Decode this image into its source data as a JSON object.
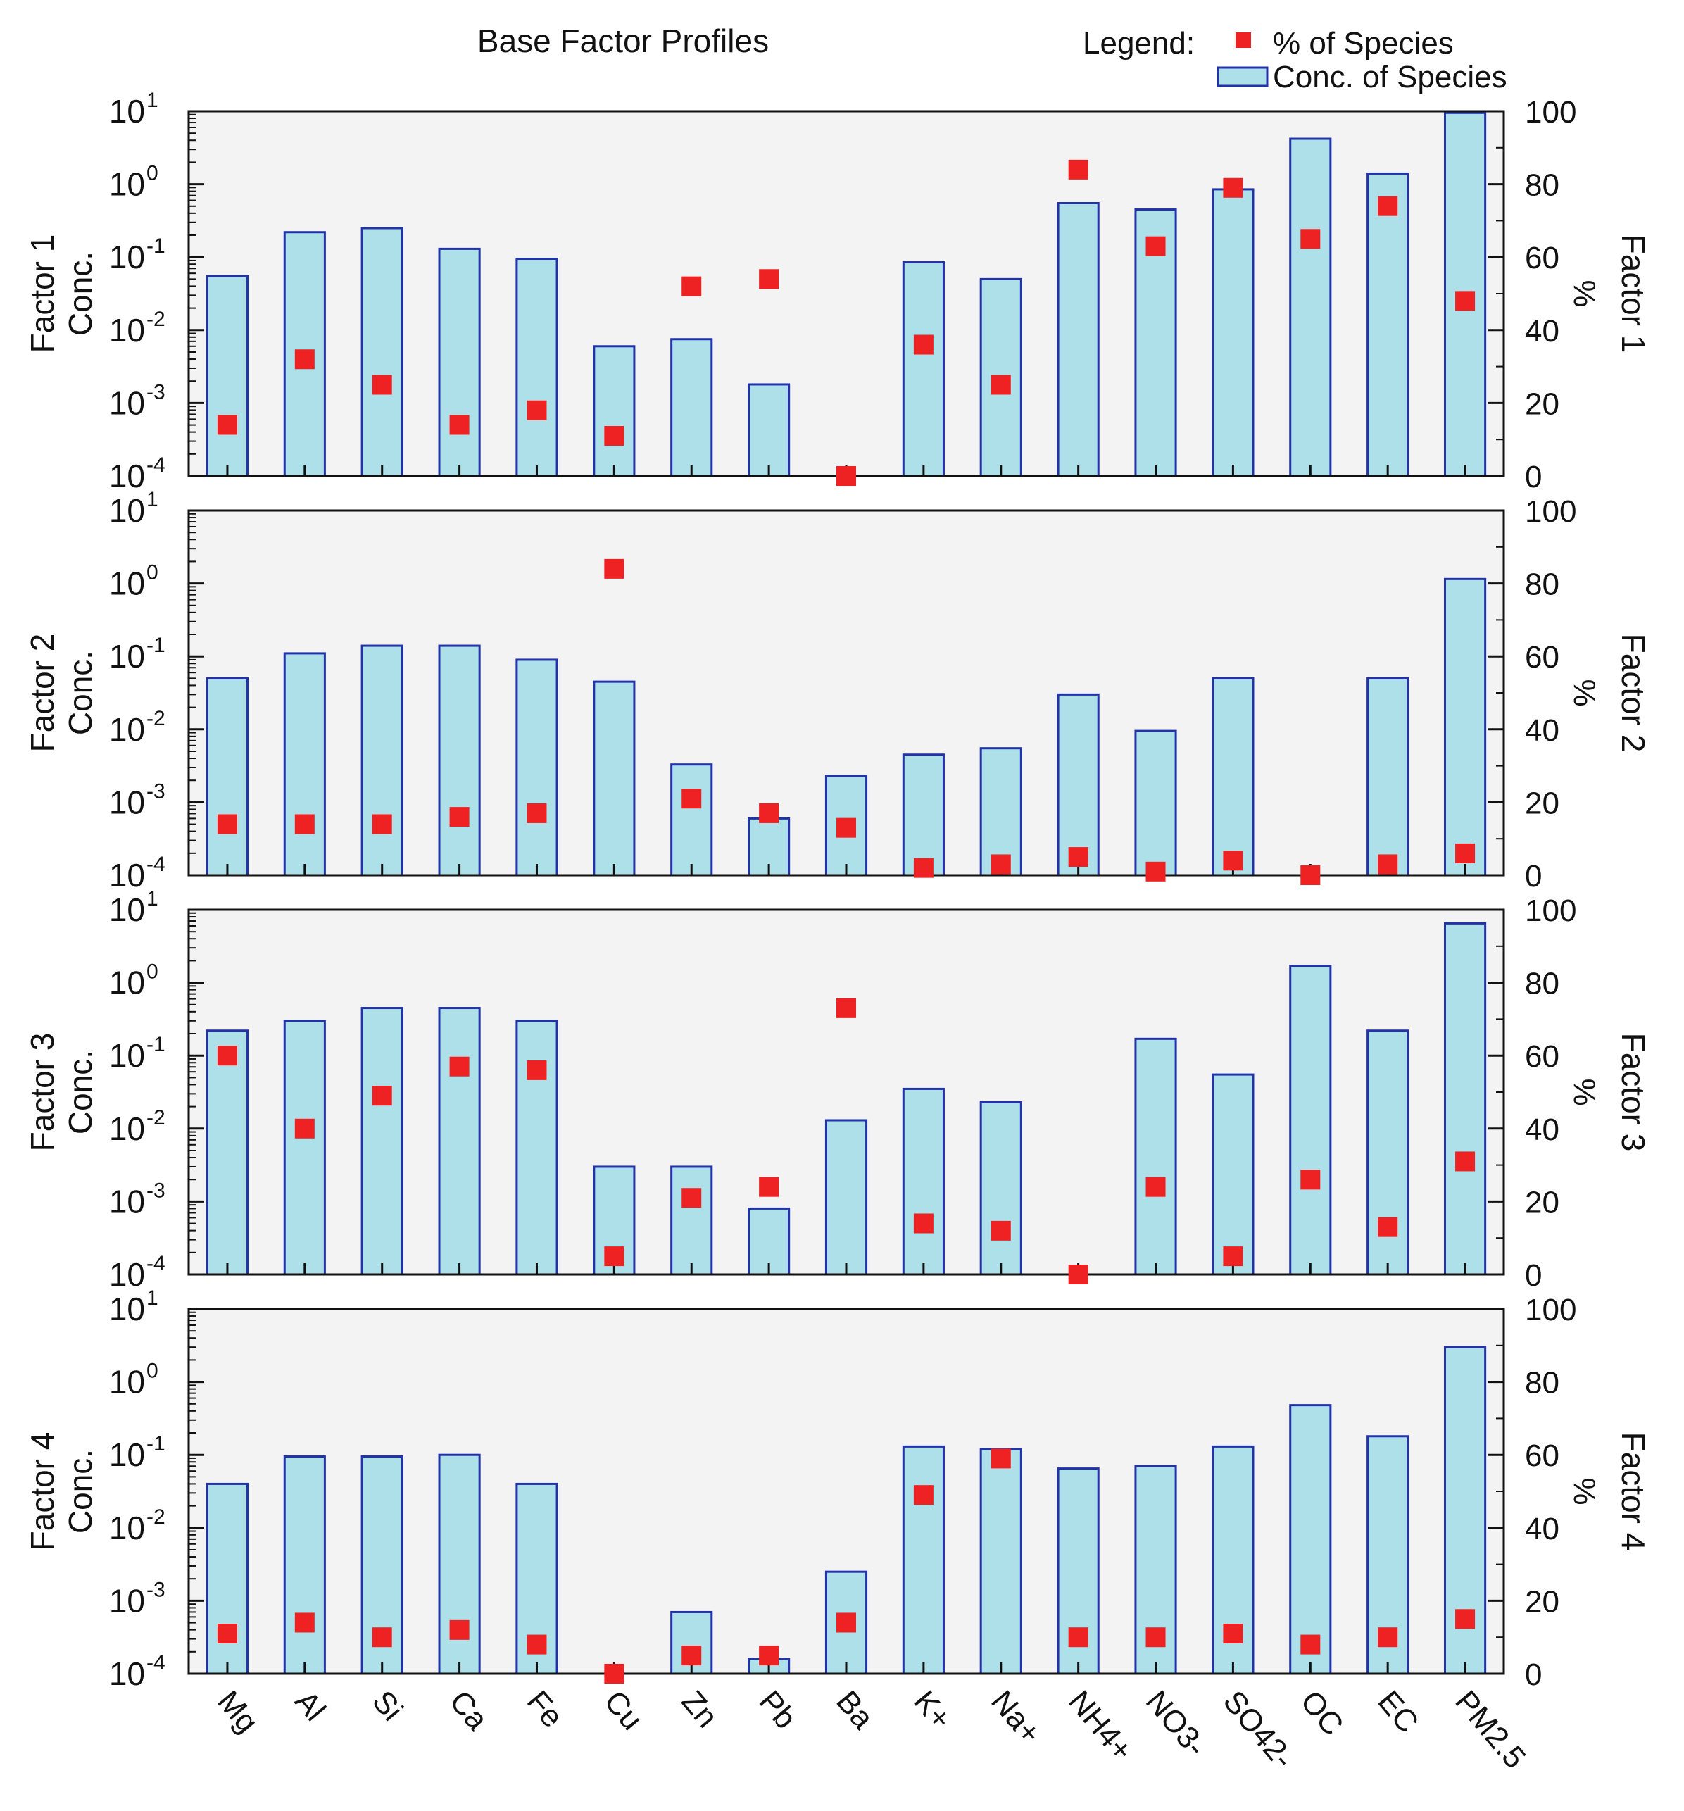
{
  "chart_data": {
    "type": "bar",
    "title": "Base Factor Profiles",
    "legend": {
      "label": "Legend:",
      "items": [
        {
          "name": "% of Species",
          "marker": "square",
          "color": "#ee2222"
        },
        {
          "name": "Conc. of Species",
          "marker": "bar",
          "color": "#aee0ea"
        }
      ],
      "placement": "top-right"
    },
    "categories": [
      "Mg",
      "Al",
      "Si",
      "Ca",
      "Fe",
      "Cu",
      "Zn",
      "Pb",
      "Ba",
      "K+",
      "Na+",
      "NH4+",
      "NO3-",
      "SO42-",
      "OC",
      "EC",
      "PM2.5"
    ],
    "left_axis": {
      "scale": "log",
      "ylim": [
        0.0001,
        10
      ],
      "ticks": [
        "-4",
        "-3",
        "-2",
        "-1",
        "0",
        "1"
      ],
      "tick_base": "10"
    },
    "right_axis": {
      "scale": "linear",
      "ylim": [
        0,
        100
      ],
      "ticks": [
        "0",
        "20",
        "40",
        "60",
        "80",
        "100"
      ],
      "label": "%"
    },
    "colors": {
      "bar_fill": "#aee0ea",
      "bar_edge": "#2233aa",
      "marker": "#ee2222",
      "panel_bg": "#f3f3f3"
    },
    "panels": [
      {
        "name": "Factor 1",
        "ylabel_line1": "Factor 1",
        "ylabel_line2": "Conc.",
        "right_label": "Factor 1",
        "conc": [
          0.055,
          0.22,
          0.25,
          0.13,
          0.095,
          0.006,
          0.0075,
          0.0018,
          0.0001,
          0.085,
          0.05,
          0.55,
          0.45,
          0.85,
          4.2,
          1.4,
          9.5
        ],
        "percent": [
          14,
          32,
          25,
          14,
          18,
          11,
          52,
          54,
          0,
          36,
          25,
          84,
          63,
          79,
          65,
          74,
          48
        ]
      },
      {
        "name": "Factor 2",
        "ylabel_line1": "Factor 2",
        "ylabel_line2": "Conc.",
        "right_label": "Factor 2",
        "conc": [
          0.05,
          0.11,
          0.14,
          0.14,
          0.09,
          0.045,
          0.0033,
          0.0006,
          0.0023,
          0.0045,
          0.0055,
          0.03,
          0.0095,
          0.05,
          0.0001,
          0.05,
          1.15
        ],
        "percent": [
          14,
          14,
          14,
          16,
          17,
          84,
          21,
          17,
          13,
          2,
          3,
          5,
          1,
          4,
          0,
          3,
          6
        ]
      },
      {
        "name": "Factor 3",
        "ylabel_line1": "Factor 3",
        "ylabel_line2": "Conc.",
        "right_label": "Factor 3",
        "conc": [
          0.22,
          0.3,
          0.45,
          0.45,
          0.3,
          0.003,
          0.003,
          0.0008,
          0.013,
          0.035,
          0.023,
          0.0001,
          0.17,
          0.055,
          1.7,
          0.22,
          6.5
        ],
        "percent": [
          60,
          40,
          49,
          57,
          56,
          5,
          21,
          24,
          73,
          14,
          12,
          0,
          24,
          5,
          26,
          13,
          31
        ]
      },
      {
        "name": "Factor 4",
        "ylabel_line1": "Factor 4",
        "ylabel_line2": "Conc.",
        "right_label": "Factor 4",
        "conc": [
          0.04,
          0.095,
          0.095,
          0.1,
          0.04,
          0.0001,
          0.0007,
          0.00016,
          0.0025,
          0.13,
          0.12,
          0.065,
          0.07,
          0.13,
          0.48,
          0.18,
          3.0
        ],
        "percent": [
          11,
          14,
          10,
          12,
          8,
          0,
          5,
          5,
          14,
          49,
          59,
          10,
          10,
          11,
          8,
          10,
          15
        ]
      }
    ]
  }
}
